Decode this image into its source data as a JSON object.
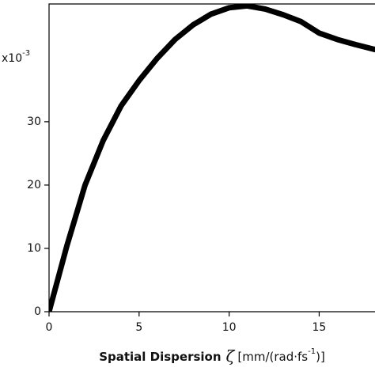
{
  "chart_data": {
    "type": "line",
    "x": [
      0,
      1,
      2,
      3,
      4,
      5,
      6,
      7,
      8,
      9,
      10,
      11,
      12,
      13,
      14,
      15,
      16,
      17,
      18.1
    ],
    "series": [
      {
        "color": "#000000",
        "values": [
          0,
          10.5,
          20,
          27,
          32.5,
          36.5,
          40,
          43,
          45.3,
          47,
          48,
          48.3,
          47.8,
          46.9,
          45.8,
          44.0,
          43.0,
          42.2,
          41.4
        ]
      }
    ],
    "xlim": [
      0,
      18.1
    ],
    "ylim": [
      0,
      48.6
    ],
    "xticks": [
      0,
      5,
      10,
      15
    ],
    "yticks": [
      0,
      10,
      20,
      30
    ],
    "y_multiplier": {
      "base": "x10",
      "exponent": "-3"
    },
    "x_label": {
      "name": "Spatial Dispersion",
      "symbol": "ζ",
      "unit_start": "[mm/(rad·fs",
      "unit_exponent": "-1",
      "unit_end": ")]"
    }
  }
}
